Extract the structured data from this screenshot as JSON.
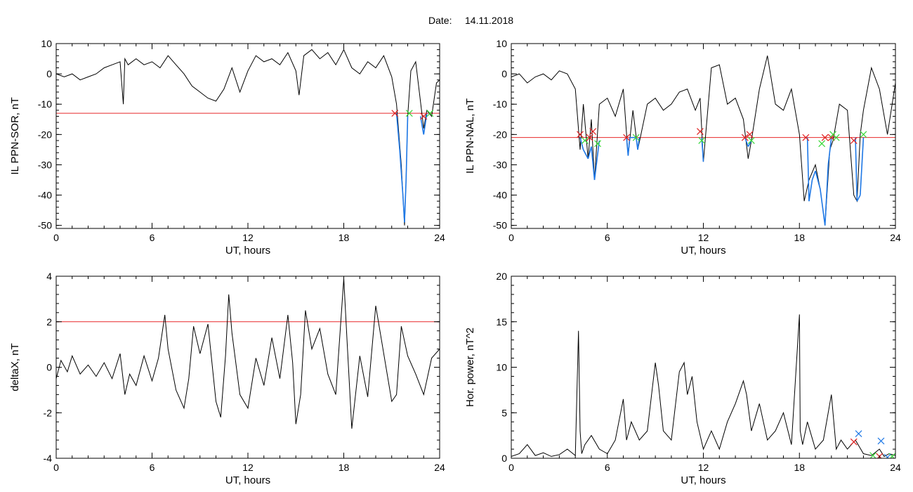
{
  "figure": {
    "date_label": "Date:",
    "date_value": "14.11.2018"
  },
  "chart_data": [
    {
      "id": "panel-ppn-sor",
      "type": "line",
      "xlabel": "UT, hours",
      "ylabel": "IL PPN-SOR, nT",
      "xlim": [
        0,
        24
      ],
      "ylim": [
        -51,
        10
      ],
      "xticks": [
        0,
        6,
        12,
        18,
        24
      ],
      "yticks": [
        10,
        0,
        -10,
        -20,
        -30,
        -40,
        -50
      ],
      "threshold": -13,
      "series": [
        {
          "x": [
            0,
            0.5,
            1,
            1.5,
            2,
            2.5,
            3,
            3.5,
            4,
            4.2,
            4.3,
            4.5,
            5,
            5.5,
            6,
            6.5,
            7,
            7.5,
            8,
            8.5,
            9,
            9.5,
            10,
            10.5,
            11,
            11.5,
            12,
            12.5,
            13,
            13.5,
            14,
            14.5,
            15,
            15.2,
            15.5,
            16,
            16.5,
            17,
            17.5,
            18,
            18.5,
            19,
            19.5,
            20,
            20.5,
            21,
            21.3,
            21.6,
            21.8,
            21.9,
            22,
            22.2,
            22.5,
            23,
            23.2,
            23.5,
            23.8,
            24
          ],
          "y": [
            0,
            -1,
            0,
            -2,
            -1,
            0,
            2,
            3,
            4,
            -10,
            5,
            3,
            5,
            3,
            4,
            2,
            6,
            3,
            0,
            -4,
            -6,
            -8,
            -9,
            -5,
            2,
            -6,
            1,
            6,
            4,
            5,
            3,
            7,
            1,
            -7,
            6,
            8,
            5,
            7,
            3,
            8,
            2,
            0,
            4,
            2,
            6,
            -1,
            -10,
            -30,
            -50,
            -35,
            -14,
            1,
            4,
            -18,
            -12,
            -14,
            -3,
            -2
          ]
        }
      ],
      "highlight": {
        "x": [
          21.3,
          21.5,
          21.7,
          21.8,
          21.9,
          22.0,
          22.8,
          23.0,
          23.2
        ],
        "y": [
          -13,
          -25,
          -40,
          -49,
          -35,
          -14,
          -14,
          -20,
          -13
        ]
      },
      "red_marks": {
        "x": [
          21.2,
          23.0
        ],
        "y": [
          -13,
          -14
        ]
      },
      "green_marks": {
        "x": [
          22.1,
          23.4
        ],
        "y": [
          -13,
          -13
        ]
      }
    },
    {
      "id": "panel-ppn-nal",
      "type": "line",
      "xlabel": "UT, hours",
      "ylabel": "IL PPN-NAL, nT",
      "xlim": [
        0,
        24
      ],
      "ylim": [
        -51,
        10
      ],
      "xticks": [
        0,
        6,
        12,
        18,
        24
      ],
      "yticks": [
        10,
        0,
        -10,
        -20,
        -30,
        -40,
        -50
      ],
      "threshold": -21,
      "series": [
        {
          "x": [
            0,
            0.5,
            1,
            1.5,
            2,
            2.5,
            3,
            3.5,
            4,
            4.3,
            4.5,
            4.8,
            5,
            5.2,
            5.5,
            6,
            6.5,
            7,
            7.3,
            7.6,
            7.9,
            8.5,
            9,
            9.5,
            10,
            10.5,
            11,
            11.5,
            11.8,
            12,
            12.5,
            13,
            13.5,
            14,
            14.5,
            14.8,
            15,
            15.5,
            16,
            16.5,
            17,
            17.5,
            18,
            18.3,
            18.6,
            19,
            19.3,
            19.6,
            19.9,
            20.1,
            20.5,
            21,
            21.4,
            21.6,
            21.8,
            22,
            22.5,
            23,
            23.5,
            24
          ],
          "y": [
            -1,
            0,
            -3,
            -1,
            0,
            -2,
            1,
            0,
            -5,
            -25,
            -10,
            -28,
            -15,
            -35,
            -10,
            -8,
            -14,
            -5,
            -27,
            -12,
            -25,
            -10,
            -8,
            -12,
            -10,
            -6,
            -5,
            -12,
            -8,
            -29,
            2,
            3,
            -10,
            -8,
            -15,
            -28,
            -22,
            -5,
            6,
            -10,
            -12,
            -5,
            -20,
            -42,
            -35,
            -30,
            -38,
            -50,
            -25,
            -22,
            -10,
            -12,
            -40,
            -42,
            -20,
            -12,
            2,
            -5,
            -20,
            -3
          ]
        }
      ],
      "highlight": {
        "x": [
          4.3,
          4.5,
          4.8,
          5.0,
          5.2,
          5.5,
          7.2,
          7.3,
          7.4,
          7.8,
          7.9,
          8.0,
          11.9,
          12.0,
          14.6,
          14.8,
          15.0,
          18.5,
          18.6,
          18.8,
          19.0,
          19.3,
          19.6,
          19.8,
          20.0,
          21.5,
          21.6,
          21.8,
          22.0
        ],
        "y": [
          -21,
          -25,
          -28,
          -24,
          -35,
          -22,
          -21,
          -27,
          -21,
          -21,
          -25,
          -21,
          -21,
          -29,
          -21,
          -24,
          -22,
          -21,
          -42,
          -35,
          -32,
          -38,
          -50,
          -30,
          -21,
          -21,
          -42,
          -40,
          -21
        ]
      },
      "red_marks": {
        "x": [
          4.3,
          4.9,
          5.1,
          7.2,
          11.8,
          14.6,
          14.9,
          18.4,
          19.6,
          20.0,
          21.4
        ],
        "y": [
          -20,
          -21,
          -19,
          -21,
          -19,
          -21,
          -20,
          -21,
          -21,
          -21,
          -22
        ]
      },
      "green_marks": {
        "x": [
          4.6,
          5.4,
          7.8,
          11.9,
          15.0,
          19.4,
          20.1,
          20.3,
          22.0
        ],
        "y": [
          -22,
          -23,
          -21,
          -22,
          -22,
          -23,
          -20,
          -21,
          -20
        ]
      }
    },
    {
      "id": "panel-deltax",
      "type": "line",
      "xlabel": "UT, hours",
      "ylabel": "deltaX, nT",
      "xlim": [
        0,
        24
      ],
      "ylim": [
        -4,
        4
      ],
      "xticks": [
        0,
        6,
        12,
        18,
        24
      ],
      "yticks": [
        4,
        2,
        0,
        -2,
        -4
      ],
      "threshold": 2,
      "series": [
        {
          "x": [
            0,
            0.3,
            0.7,
            1,
            1.5,
            2,
            2.5,
            3,
            3.5,
            4,
            4.3,
            4.6,
            5,
            5.5,
            6,
            6.4,
            6.8,
            7,
            7.5,
            8,
            8.3,
            8.6,
            9,
            9.5,
            10,
            10.3,
            10.6,
            10.8,
            11,
            11.5,
            12,
            12.5,
            13,
            13.5,
            14,
            14.5,
            14.8,
            15,
            15.3,
            15.6,
            16,
            16.5,
            17,
            17.5,
            18,
            18.2,
            18.5,
            19,
            19.5,
            20,
            20.5,
            21,
            21.3,
            21.6,
            22,
            22.5,
            23,
            23.5,
            24
          ],
          "y": [
            -0.5,
            0.3,
            -0.2,
            0.5,
            -0.3,
            0.1,
            -0.4,
            0.2,
            -0.5,
            0.6,
            -1.2,
            -0.3,
            -0.8,
            0.5,
            -0.6,
            0.4,
            2.3,
            0.8,
            -1,
            -1.8,
            -0.5,
            1.8,
            0.6,
            1.9,
            -1.5,
            -2.2,
            0.5,
            3.2,
            1.5,
            -1.2,
            -1.8,
            0.4,
            -0.8,
            1.3,
            -0.5,
            2.3,
            0.2,
            -2.5,
            -1.2,
            2.5,
            0.8,
            1.7,
            -0.3,
            -1.2,
            3.9,
            1.2,
            -2.7,
            0.5,
            -1.3,
            2.7,
            0.6,
            -1.5,
            -1.2,
            1.8,
            0.5,
            -0.3,
            -1.2,
            0.4,
            0.8
          ]
        }
      ]
    },
    {
      "id": "panel-hor-power",
      "type": "line",
      "xlabel": "UT, hours",
      "ylabel": "Hor. power, nT^2",
      "xlim": [
        0,
        24
      ],
      "ylim": [
        0,
        20
      ],
      "xticks": [
        0,
        6,
        12,
        18,
        24
      ],
      "yticks": [
        20,
        15,
        10,
        5,
        0
      ],
      "series": [
        {
          "x": [
            0,
            0.5,
            1,
            1.5,
            2,
            2.5,
            3,
            3.5,
            4,
            4.2,
            4.3,
            4.4,
            4.6,
            5,
            5.5,
            6,
            6.5,
            7,
            7.2,
            7.5,
            8,
            8.5,
            9,
            9.2,
            9.5,
            10,
            10.5,
            10.8,
            11,
            11.3,
            11.6,
            12,
            12.5,
            13,
            13.5,
            14,
            14.5,
            14.7,
            15,
            15.5,
            16,
            16.5,
            17,
            17.5,
            18,
            18.05,
            18.2,
            18.5,
            19,
            19.5,
            20,
            20.3,
            20.6,
            21,
            21.5,
            22,
            22.5,
            23,
            23.3,
            23.6,
            24
          ],
          "y": [
            0.2,
            0.5,
            1.5,
            0.3,
            0.6,
            0.2,
            0.4,
            1,
            0.3,
            14,
            3,
            0.5,
            1.5,
            2.5,
            1,
            0.5,
            2,
            6.5,
            2,
            4,
            2,
            3,
            10.5,
            8,
            3,
            2,
            9.5,
            10.5,
            7,
            9,
            4,
            1,
            3,
            1,
            4,
            6,
            8.5,
            7,
            3,
            6,
            2,
            3,
            5,
            1.5,
            15.8,
            3,
            1.5,
            4,
            1,
            2,
            7,
            1,
            2,
            1,
            2,
            0.5,
            0.3,
            1,
            0.2,
            0.5,
            0.3
          ]
        }
      ],
      "red_marks": {
        "x": [
          21.4,
          23.0
        ],
        "y": [
          1.8,
          0.2
        ]
      },
      "green_marks": {
        "x": [
          22.6,
          23.8
        ],
        "y": [
          0.3,
          0.2
        ]
      },
      "blue_marks": {
        "x": [
          21.7,
          23.1,
          23.5
        ],
        "y": [
          2.7,
          1.9,
          0.1
        ]
      }
    }
  ],
  "colors": {
    "line": "#000000",
    "threshold": "#e8292a",
    "highlight": "#1e78e6",
    "red_mark": "#e02020",
    "green_mark": "#38d838",
    "blue_mark": "#1e78e6"
  }
}
